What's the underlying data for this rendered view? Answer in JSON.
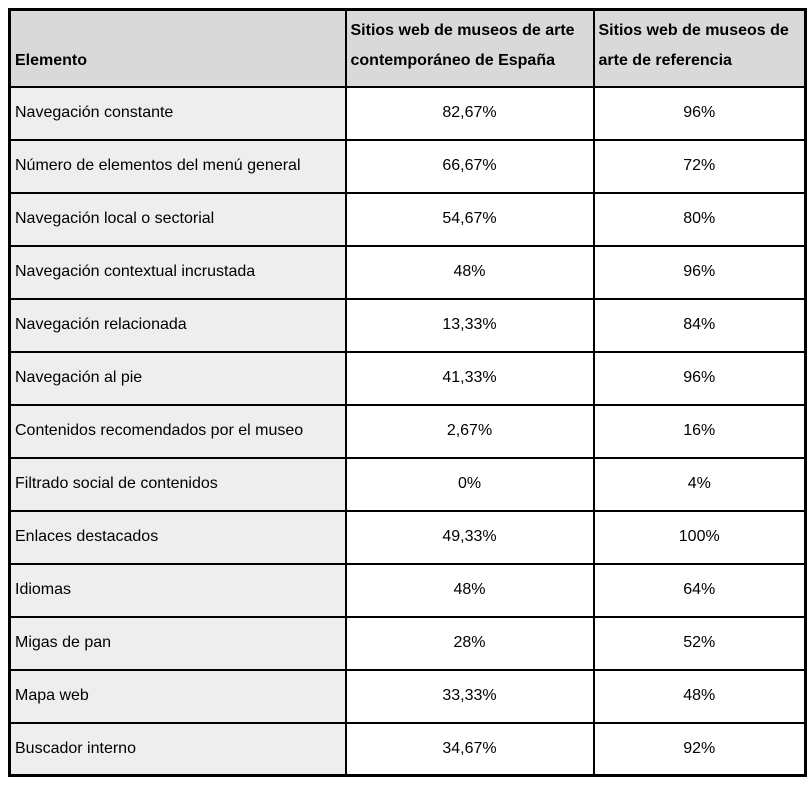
{
  "table": {
    "headers": [
      "Elemento",
      "Sitios web de museos de arte contemporáneo de España",
      "Sitios web de museos de arte de referencia"
    ],
    "rows": [
      [
        "Navegación constante",
        "82,67%",
        "96%"
      ],
      [
        "Número de elementos del menú general",
        "66,67%",
        "72%"
      ],
      [
        "Navegación local o sectorial",
        "54,67%",
        "80%"
      ],
      [
        "Navegación contextual incrustada",
        "48%",
        "96%"
      ],
      [
        "Navegación relacionada",
        "13,33%",
        "84%"
      ],
      [
        "Navegación al pie",
        "41,33%",
        "96%"
      ],
      [
        "Contenidos recomendados por el museo",
        "2,67%",
        "16%"
      ],
      [
        "Filtrado social de contenidos",
        "0%",
        "4%"
      ],
      [
        "Enlaces destacados",
        "49,33%",
        "100%"
      ],
      [
        "Idiomas",
        "48%",
        "64%"
      ],
      [
        "Migas de pan",
        "28%",
        "52%"
      ],
      [
        "Mapa web",
        "33,33%",
        "48%"
      ],
      [
        "Buscador interno",
        "34,67%",
        "92%"
      ]
    ]
  },
  "colors": {
    "header_bg": "#d9d9d9",
    "label_column_bg": "#eeeeee",
    "value_cell_bg": "#ffffff",
    "border": "#000000",
    "text": "#000000"
  },
  "chart_data": {
    "type": "table",
    "title": "",
    "categories": [
      "Navegación constante",
      "Número de elementos del menú general",
      "Navegación local o sectorial",
      "Navegación contextual incrustada",
      "Navegación relacionada",
      "Navegación al pie",
      "Contenidos recomendados por el museo",
      "Filtrado social de contenidos",
      "Enlaces destacados",
      "Idiomas",
      "Migas de pan",
      "Mapa web",
      "Buscador interno"
    ],
    "series": [
      {
        "name": "Sitios web de museos de arte contemporáneo de España",
        "unit": "%",
        "values": [
          82.67,
          66.67,
          54.67,
          48,
          13.33,
          41.33,
          2.67,
          0,
          49.33,
          48,
          28,
          33.33,
          34.67
        ]
      },
      {
        "name": "Sitios web de museos de arte de referencia",
        "unit": "%",
        "values": [
          96,
          72,
          80,
          96,
          84,
          96,
          16,
          4,
          100,
          64,
          52,
          48,
          92
        ]
      }
    ]
  }
}
